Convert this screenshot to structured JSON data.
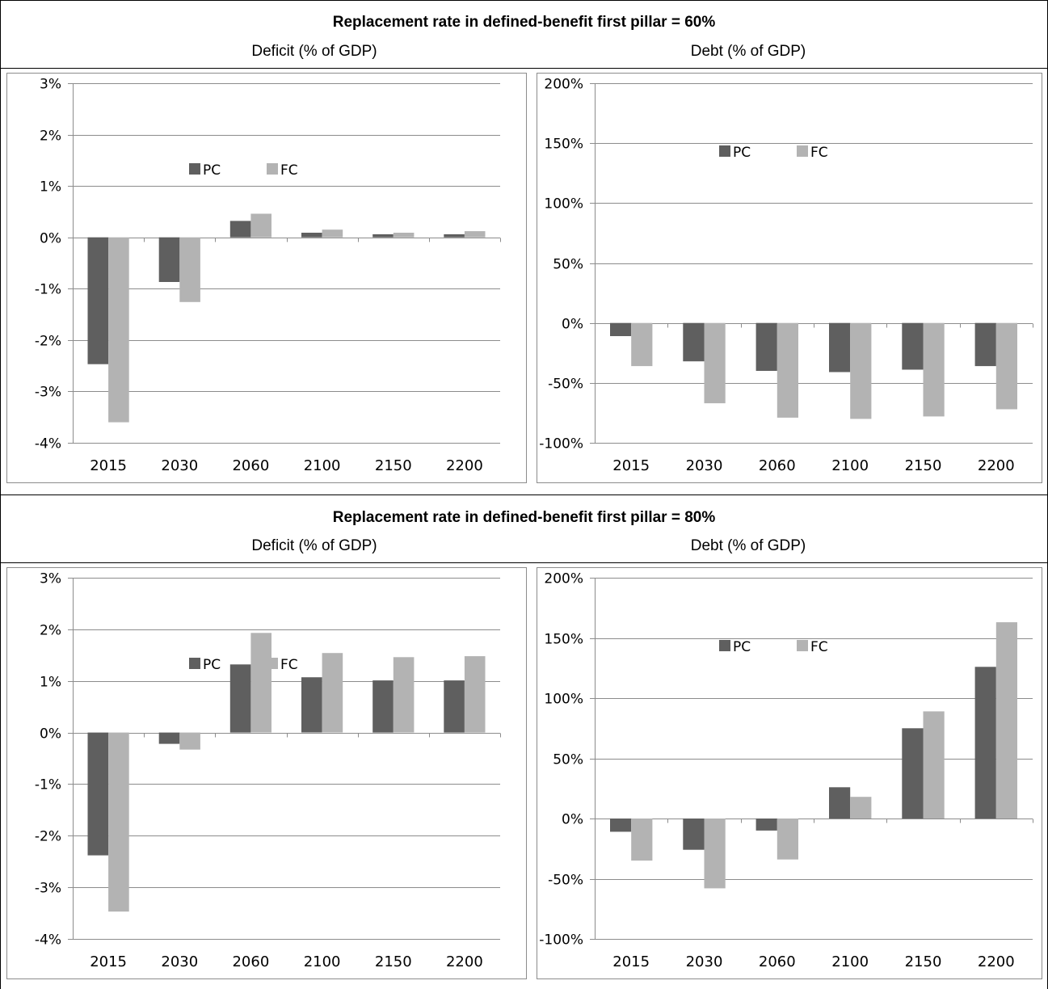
{
  "rows": [
    {
      "title": "Replacement rate in defined-benefit first pillar = 60%",
      "deficit_label": "Deficit (% of GDP)",
      "debt_label": "Debt (% of GDP)"
    },
    {
      "title": "Replacement rate in defined-benefit first pillar = 80%",
      "deficit_label": "Deficit (% of GDP)",
      "debt_label": "Debt (% of GDP)"
    }
  ],
  "colors": {
    "PC": "#5f5f5f",
    "FC": "#b3b3b3",
    "grid": "#8c8c8c",
    "border": "#8c8c8c"
  },
  "chart_data": [
    {
      "type": "bar",
      "title": "Deficit (% of GDP)",
      "categories": [
        "2015",
        "2030",
        "2060",
        "2100",
        "2150",
        "2200"
      ],
      "series": [
        {
          "name": "PC",
          "values": [
            -2.47,
            -0.87,
            0.32,
            0.09,
            0.06,
            0.06
          ]
        },
        {
          "name": "FC",
          "values": [
            -3.6,
            -1.26,
            0.46,
            0.15,
            0.09,
            0.12
          ]
        }
      ],
      "ylim": [
        -4,
        3
      ],
      "ytick_step": 1,
      "yticks": [
        "3%",
        "2%",
        "1%",
        "0%",
        "-1%",
        "-2%",
        "-3%",
        "-4%"
      ],
      "grid": true,
      "legend": "inside-top-center"
    },
    {
      "type": "bar",
      "title": "Debt (% of GDP)",
      "categories": [
        "2015",
        "2030",
        "2060",
        "2100",
        "2150",
        "2200"
      ],
      "series": [
        {
          "name": "PC",
          "values": [
            -11,
            -32,
            -40,
            -41,
            -39,
            -36
          ]
        },
        {
          "name": "FC",
          "values": [
            -36,
            -67,
            -79,
            -80,
            -78,
            -72
          ]
        }
      ],
      "ylim": [
        -100,
        200
      ],
      "ytick_step": 50,
      "yticks": [
        "200%",
        "150%",
        "100%",
        "50%",
        "0%",
        "-50%",
        "-100%"
      ],
      "grid": true,
      "legend": "inside-top-center"
    },
    {
      "type": "bar",
      "title": "Deficit (% of GDP)",
      "categories": [
        "2015",
        "2030",
        "2060",
        "2100",
        "2150",
        "2200"
      ],
      "series": [
        {
          "name": "PC",
          "values": [
            -2.38,
            -0.22,
            1.32,
            1.07,
            1.01,
            1.01
          ]
        },
        {
          "name": "FC",
          "values": [
            -3.47,
            -0.33,
            1.93,
            1.54,
            1.46,
            1.48
          ]
        }
      ],
      "ylim": [
        -4,
        3
      ],
      "ytick_step": 1,
      "yticks": [
        "3%",
        "2%",
        "1%",
        "0%",
        "-1%",
        "-2%",
        "-3%",
        "-4%"
      ],
      "grid": true,
      "legend": "inside-top-center"
    },
    {
      "type": "bar",
      "title": "Debt (% of GDP)",
      "categories": [
        "2015",
        "2030",
        "2060",
        "2100",
        "2150",
        "2200"
      ],
      "series": [
        {
          "name": "PC",
          "values": [
            -11,
            -26,
            -10,
            26,
            75,
            126
          ]
        },
        {
          "name": "FC",
          "values": [
            -35,
            -58,
            -34,
            18,
            89,
            163
          ]
        }
      ],
      "ylim": [
        -100,
        200
      ],
      "ytick_step": 50,
      "yticks": [
        "200%",
        "150%",
        "100%",
        "50%",
        "0%",
        "-50%",
        "-100%"
      ],
      "grid": true,
      "legend": "inside-top-center"
    }
  ]
}
